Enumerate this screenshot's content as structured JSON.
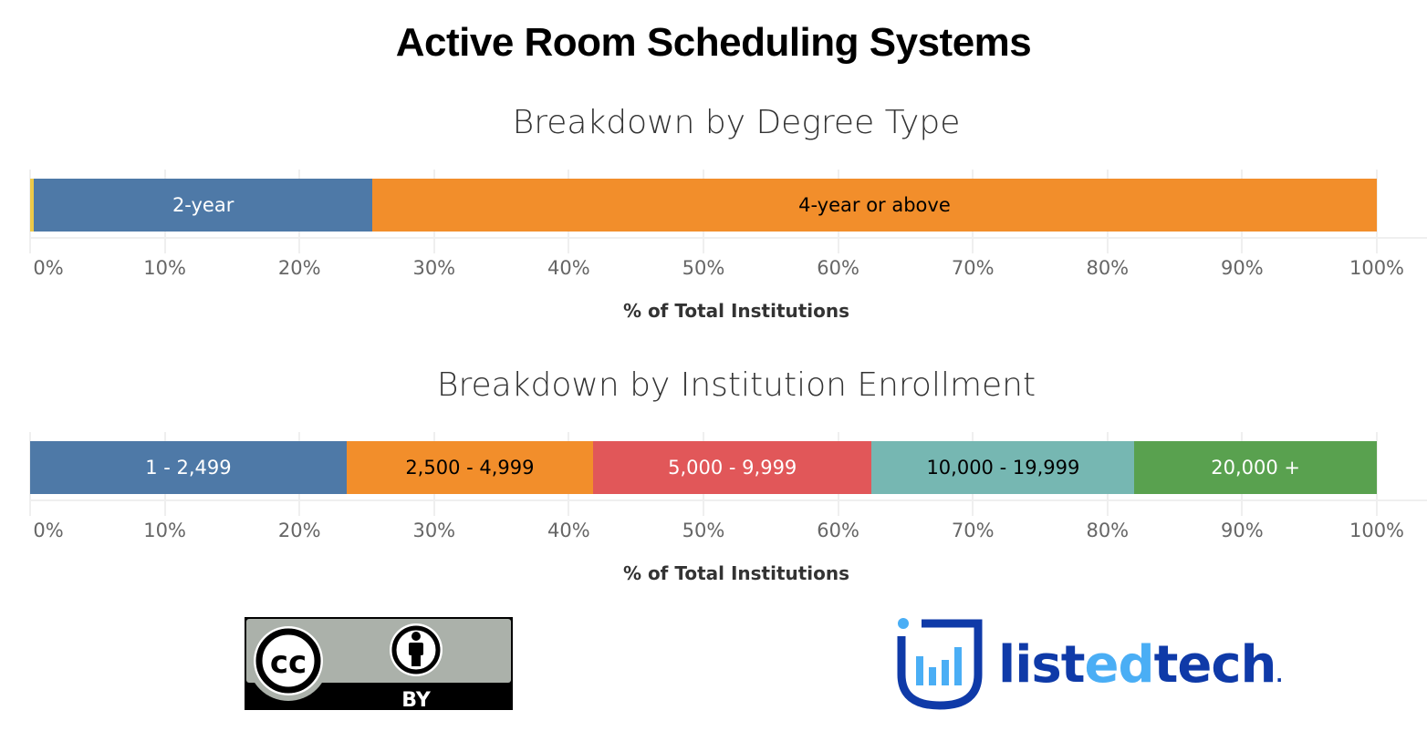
{
  "title": "Active Room Scheduling Systems",
  "charts": [
    {
      "subtitle": "Breakdown by Degree Type",
      "xlabel": "% of Total Institutions",
      "segments": [
        {
          "label": "",
          "value": 0.3,
          "color": "#EDC948",
          "text_color": "#000000"
        },
        {
          "label": "2-year",
          "value": 25.1,
          "color": "#4E79A7",
          "text_color": "#FFFFFF"
        },
        {
          "label": "4-year or above",
          "value": 74.6,
          "color": "#F28E2B",
          "text_color": "#000000"
        }
      ]
    },
    {
      "subtitle": "Breakdown by Institution Enrollment",
      "xlabel": "% of Total Institutions",
      "segments": [
        {
          "label": "1 - 2,499",
          "value": 23.5,
          "color": "#4E79A7",
          "text_color": "#FFFFFF"
        },
        {
          "label": "2,500 - 4,999",
          "value": 18.3,
          "color": "#F28E2B",
          "text_color": "#000000"
        },
        {
          "label": "5,000 - 9,999",
          "value": 20.7,
          "color": "#E15759",
          "text_color": "#FFFFFF"
        },
        {
          "label": "10,000 - 19,999",
          "value": 19.5,
          "color": "#76B7B2",
          "text_color": "#000000"
        },
        {
          "label": "20,000 +",
          "value": 18.0,
          "color": "#59A14F",
          "text_color": "#FFFFFF"
        }
      ]
    }
  ],
  "ticks": [
    "0%",
    "10%",
    "20%",
    "30%",
    "40%",
    "50%",
    "60%",
    "70%",
    "80%",
    "90%",
    "100%"
  ],
  "logos": {
    "cc": {
      "main": "cc",
      "sub": "BY"
    },
    "listedtech": {
      "part1": "list",
      "part2": "ed",
      "part3": "tech",
      "dot": "."
    }
  },
  "chart_data": [
    {
      "type": "bar",
      "orientation": "horizontal-stacked-100",
      "title": "Breakdown by Degree Type",
      "xlabel": "% of Total Institutions",
      "ylabel": "",
      "xlim": [
        0,
        100
      ],
      "x_ticks": [
        "0%",
        "10%",
        "20%",
        "30%",
        "40%",
        "50%",
        "60%",
        "70%",
        "80%",
        "90%",
        "100%"
      ],
      "grid": true,
      "categories": [
        "(unlabeled)",
        "2-year",
        "4-year or above"
      ],
      "values": [
        0.3,
        25.1,
        74.6
      ]
    },
    {
      "type": "bar",
      "orientation": "horizontal-stacked-100",
      "title": "Breakdown by Institution Enrollment",
      "xlabel": "% of Total Institutions",
      "ylabel": "",
      "xlim": [
        0,
        100
      ],
      "x_ticks": [
        "0%",
        "10%",
        "20%",
        "30%",
        "40%",
        "50%",
        "60%",
        "70%",
        "80%",
        "90%",
        "100%"
      ],
      "grid": true,
      "categories": [
        "1 - 2,499",
        "2,500 - 4,999",
        "5,000 - 9,999",
        "10,000 - 19,999",
        "20,000 +"
      ],
      "values": [
        23.5,
        18.3,
        20.7,
        19.5,
        18.0
      ]
    }
  ]
}
